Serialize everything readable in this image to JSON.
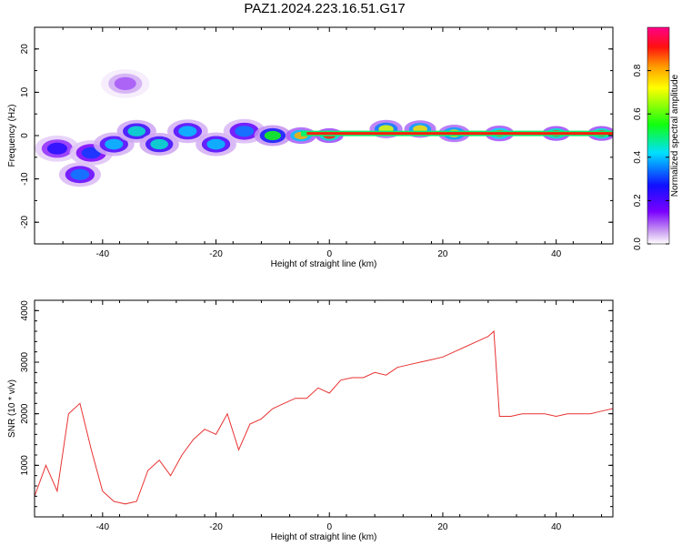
{
  "figure": {
    "title": "PAZ1.2024.223.16.51.G17"
  },
  "chart_data": [
    {
      "type": "heatmap",
      "xlabel": "Height of straight line (km)",
      "ylabel": "Frequency (Hz)",
      "xlim": [
        -52,
        50
      ],
      "ylim": [
        -25,
        25
      ],
      "x_ticks": [
        -40,
        -20,
        0,
        20,
        40
      ],
      "y_ticks": [
        -20,
        -10,
        0,
        10,
        20
      ],
      "colorbar": {
        "label": "Normalized spectral amplitude",
        "range": [
          0,
          1
        ],
        "ticks": [
          "0.0",
          "0.2",
          "0.4",
          "0.6",
          "0.8"
        ],
        "colormap": "rainbow (white, violet, blue, cyan, green, yellow, orange, red, magenta)"
      },
      "blobs": [
        {
          "x": -48,
          "y": -3,
          "amp": 0.25
        },
        {
          "x": -44,
          "y": -9,
          "amp": 0.35
        },
        {
          "x": -42,
          "y": -4,
          "amp": 0.3
        },
        {
          "x": -38,
          "y": -2,
          "amp": 0.4
        },
        {
          "x": -36,
          "y": 12,
          "amp": 0.1
        },
        {
          "x": -34,
          "y": 1,
          "amp": 0.45
        },
        {
          "x": -30,
          "y": -2,
          "amp": 0.45
        },
        {
          "x": -25,
          "y": 1,
          "amp": 0.4
        },
        {
          "x": -20,
          "y": -2,
          "amp": 0.4
        },
        {
          "x": -15,
          "y": 1,
          "amp": 0.35
        },
        {
          "x": -10,
          "y": 0,
          "amp": 0.55
        },
        {
          "x": -5,
          "y": 0,
          "amp": 0.8
        },
        {
          "x": 0,
          "y": 0,
          "amp": 0.9
        },
        {
          "x": 10,
          "y": 1.5,
          "amp": 0.7
        },
        {
          "x": 16,
          "y": 1.5,
          "amp": 0.75
        },
        {
          "x": 22,
          "y": 0.5,
          "amp": 0.75
        },
        {
          "x": 30,
          "y": 0.5,
          "amp": 0.85
        },
        {
          "x": 40,
          "y": 0.5,
          "amp": 0.9
        },
        {
          "x": 48,
          "y": 0.5,
          "amp": 0.9
        }
      ]
    },
    {
      "type": "line",
      "xlabel": "Height of straight line (km)",
      "ylabel": "SNR (10 * v/v)",
      "xlim": [
        -52,
        50
      ],
      "ylim": [
        0,
        4200
      ],
      "x_ticks": [
        -40,
        -20,
        0,
        20,
        40
      ],
      "y_ticks": [
        1000,
        2000,
        3000,
        4000
      ],
      "color": "#e83232",
      "series": [
        {
          "x": [
            -52,
            -50,
            -48,
            -46,
            -44,
            -42,
            -40,
            -38,
            -36,
            -34,
            -32,
            -30,
            -28,
            -26,
            -24,
            -22,
            -20,
            -18,
            -16,
            -14,
            -12,
            -10,
            -8,
            -6,
            -4,
            -2,
            0,
            2,
            4,
            6,
            8,
            10,
            12,
            14,
            16,
            18,
            20,
            22,
            24,
            26,
            28,
            29,
            30,
            32,
            34,
            36,
            38,
            40,
            42,
            44,
            46,
            48,
            50
          ],
          "y": [
            400,
            1000,
            500,
            2000,
            2200,
            1300,
            500,
            300,
            250,
            300,
            900,
            1100,
            800,
            1200,
            1500,
            1700,
            1600,
            2000,
            1300,
            1800,
            1900,
            2100,
            2200,
            2300,
            2300,
            2500,
            2400,
            2650,
            2700,
            2700,
            2800,
            2750,
            2900,
            2950,
            3000,
            3050,
            3100,
            3200,
            3300,
            3400,
            3500,
            3600,
            1950,
            1950,
            2000,
            2000,
            2000,
            1950,
            2000,
            2000,
            2000,
            2050,
            2100
          ]
        }
      ]
    }
  ]
}
